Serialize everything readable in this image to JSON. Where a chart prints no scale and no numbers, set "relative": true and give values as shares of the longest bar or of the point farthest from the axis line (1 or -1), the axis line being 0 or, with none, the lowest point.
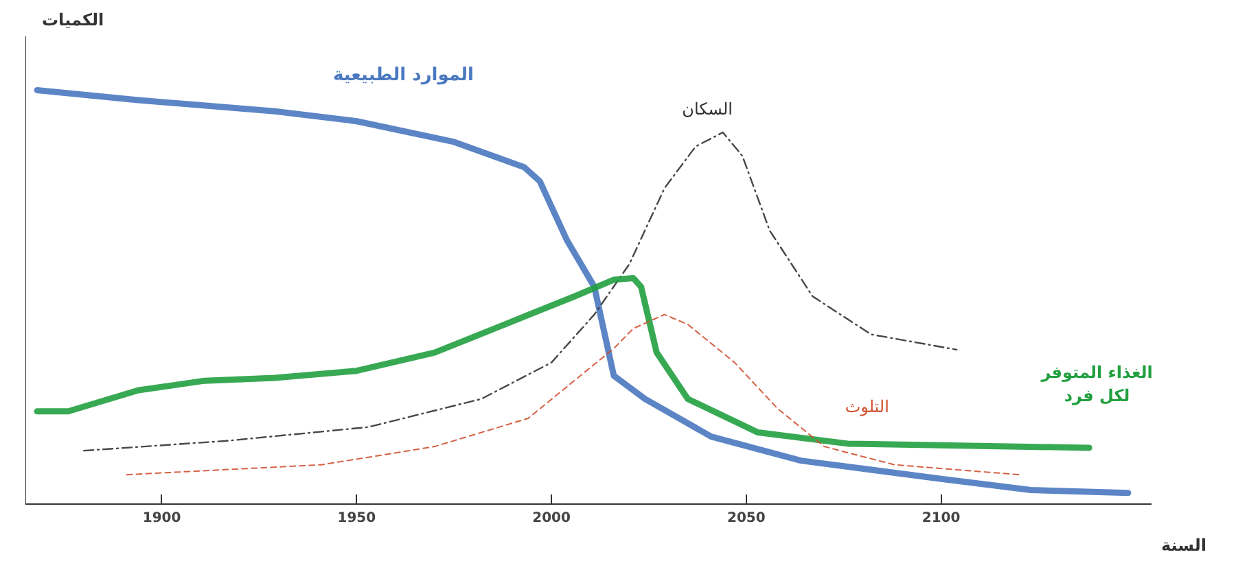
{
  "chart_data": {
    "type": "line",
    "relative": true,
    "xlabel": "السنة",
    "ylabel": "الكميات",
    "xlim": [
      1865,
      2154
    ],
    "xticks": [
      1900,
      1950,
      2000,
      2050,
      2100
    ],
    "tick_labels": "x",
    "grid": false,
    "legend": false,
    "marker": "none",
    "series": [
      {
        "name": "الموارد الطبيعية",
        "color": "#4a78c0",
        "line_style": "solid",
        "x": [
          1868,
          1894,
          1929,
          1950,
          1975,
          1993,
          1997,
          2004,
          2011,
          2016,
          2024,
          2041,
          2064,
          2100,
          2123,
          2148
        ],
        "values": [
          1.0,
          0.976,
          0.949,
          0.925,
          0.875,
          0.814,
          0.78,
          0.637,
          0.525,
          0.31,
          0.254,
          0.163,
          0.105,
          0.061,
          0.034,
          0.027
        ]
      },
      {
        "name": "السكان",
        "color": "#333333",
        "line_style": "dashdot",
        "x": [
          1880,
          1917,
          1953,
          1982,
          2000,
          2011,
          2020,
          2029,
          2037,
          2044,
          2049,
          2056,
          2067,
          2082,
          2104
        ],
        "values": [
          0.129,
          0.153,
          0.186,
          0.254,
          0.342,
          0.458,
          0.58,
          0.763,
          0.864,
          0.898,
          0.841,
          0.661,
          0.502,
          0.41,
          0.373
        ]
      },
      {
        "name": "الغذاء المتوفر\nلكل فرد",
        "color": "#22a040",
        "line_style": "solid",
        "x": [
          1868,
          1876,
          1894,
          1911,
          1929,
          1950,
          1970,
          1988,
          2006,
          2016,
          2021,
          2023,
          2027,
          2035,
          2053,
          2076,
          2138
        ],
        "values": [
          0.224,
          0.224,
          0.275,
          0.298,
          0.305,
          0.322,
          0.366,
          0.434,
          0.502,
          0.542,
          0.546,
          0.525,
          0.366,
          0.254,
          0.173,
          0.146,
          0.136
        ]
      },
      {
        "name": "التلوث",
        "color": "#d05030",
        "line_style": "dashed",
        "x": [
          1891,
          1941,
          1970,
          1994,
          2016,
          2021,
          2029,
          2035,
          2047,
          2058,
          2070,
          2088,
          2120
        ],
        "values": [
          0.071,
          0.095,
          0.139,
          0.207,
          0.376,
          0.424,
          0.458,
          0.434,
          0.342,
          0.231,
          0.139,
          0.095,
          0.071
        ]
      }
    ]
  }
}
